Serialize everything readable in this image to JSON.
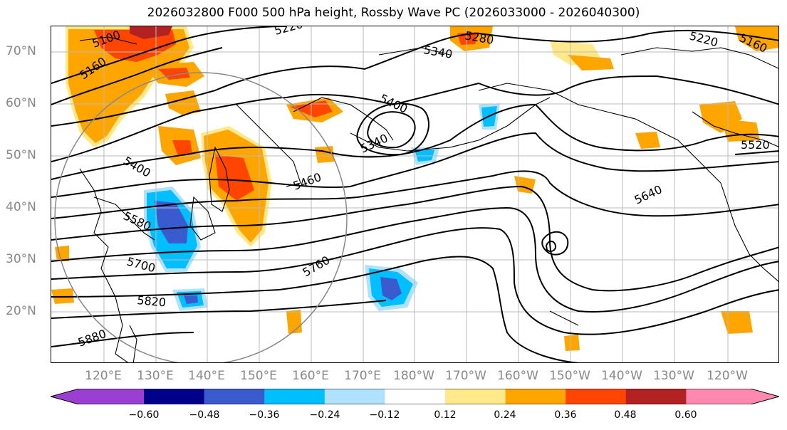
{
  "title": "2026032800 F000 500 hPa height, Rossby Wave PC (2026033000 - 2026040300)",
  "lat_labels": [
    "70°N",
    "60°N",
    "50°N",
    "40°N",
    "30°N",
    "20°N"
  ],
  "lon_labels": [
    "120°E",
    "130°E",
    "140°E",
    "150°E",
    "160°E",
    "170°E",
    "180°W",
    "170°W",
    "160°W",
    "150°W",
    "140°W",
    "130°W",
    "120°W"
  ],
  "contour_labels": [
    "5100",
    "5160",
    "5220",
    "5280",
    "5340",
    "5220",
    "5160",
    "5400",
    "5340",
    "5400",
    "5460",
    "5580",
    "5700",
    "5760",
    "5820",
    "5880",
    "5640",
    "5520"
  ],
  "colorbar": {
    "ticks": [
      "−0.60",
      "−0.48",
      "−0.36",
      "−0.24",
      "−0.12",
      "0.12",
      "0.24",
      "0.36",
      "0.48",
      "0.60"
    ],
    "colors": [
      "#9a3fd1",
      "#00008b",
      "#3a5bd0",
      "#00bfff",
      "#b0e2ff",
      "#ffffff",
      "#ffe98a",
      "#ffa500",
      "#ff4500",
      "#b22222",
      "#ff88b0"
    ]
  },
  "colors": {
    "positive_weak": "#ffe98a",
    "positive_mid": "#ffa500",
    "positive_strong": "#ff4500",
    "positive_max": "#b22222",
    "negative_weak": "#b0e2ff",
    "negative_mid": "#00bfff",
    "negative_strong": "#3a5bd0",
    "contour": "#000000",
    "grid": "#bbbbbb",
    "circle": "#888888"
  }
}
